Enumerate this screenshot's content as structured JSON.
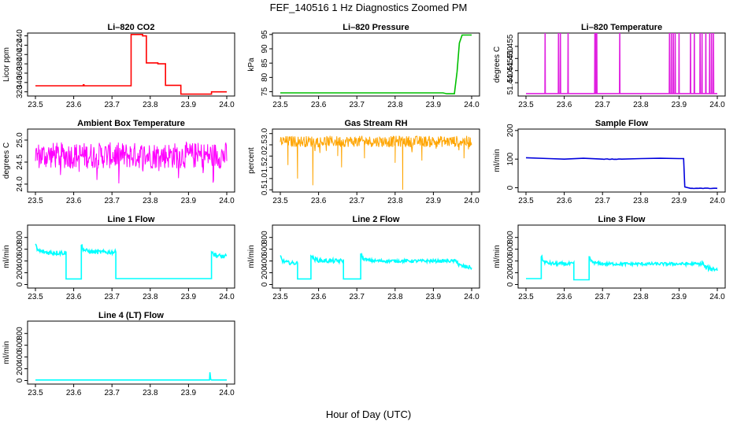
{
  "title": "FEF_140516  1 Hz Diagnostics Zoomed PM",
  "xlabel": "Hour of Day (UTC)",
  "chart_data": [
    {
      "type": "line",
      "title": "Li–820 CO2",
      "ylabel": "Licor ppm",
      "color": "#ff0000",
      "xlim": [
        23.5,
        24.0
      ],
      "xticks": [
        "23.5",
        "23.6",
        "23.7",
        "23.8",
        "23.9",
        "24.0"
      ],
      "ylim": [
        311,
        446
      ],
      "yticks": [
        320,
        340,
        360,
        380,
        400,
        420,
        440
      ],
      "x": [
        23.5,
        23.625,
        23.625,
        23.627,
        23.627,
        23.75,
        23.75,
        23.78,
        23.78,
        23.79,
        23.79,
        23.82,
        23.82,
        23.84,
        23.84,
        23.88,
        23.88,
        23.96,
        23.96,
        24.0
      ],
      "y": [
        333,
        333,
        335,
        335,
        333,
        333,
        443,
        443,
        440,
        440,
        382,
        382,
        380,
        380,
        334,
        334,
        315,
        315,
        320,
        320
      ]
    },
    {
      "type": "line",
      "title": "Li–820 Pressure",
      "ylabel": "kPa",
      "color": "#00c000",
      "xlim": [
        23.5,
        24.0
      ],
      "xticks": [
        "23.5",
        "23.6",
        "23.7",
        "23.8",
        "23.9",
        "24.0"
      ],
      "ylim": [
        73.5,
        95.5
      ],
      "yticks": [
        75,
        80,
        85,
        90,
        95
      ],
      "x": [
        23.5,
        23.925,
        23.935,
        23.955,
        23.962,
        23.968,
        23.975,
        24.0
      ],
      "y": [
        74.6,
        74.6,
        74.3,
        74.3,
        82,
        92,
        94.8,
        94.8
      ]
    },
    {
      "type": "line",
      "title": "Li–820 Temperature",
      "ylabel": "degrees C",
      "color": "#e020e0",
      "xlim": [
        23.5,
        24.0
      ],
      "xticks": [
        "23.5",
        "23.6",
        "23.7",
        "23.8",
        "23.9",
        "24.0"
      ],
      "ylim": [
        51.4345,
        51.4605
      ],
      "yticks": [
        "51.440",
        "51.445",
        "51.450",
        "51.455"
      ],
      "baseline": 51.4355,
      "spike": 51.4605,
      "spikes": [
        23.55,
        23.585,
        23.59,
        23.61,
        23.68,
        23.683,
        23.685,
        23.745,
        23.875,
        23.88,
        23.885,
        23.89,
        23.9,
        23.93,
        23.94,
        23.955,
        23.96,
        23.97,
        23.98,
        23.985,
        23.99
      ]
    },
    {
      "type": "line",
      "title": "Ambient Box Temperature",
      "ylabel": "degrees C",
      "color": "#ff00ff",
      "xlim": [
        23.5,
        24.0
      ],
      "xticks": [
        "23.5",
        "23.6",
        "23.7",
        "23.8",
        "23.9",
        "24.0"
      ],
      "ylim": [
        23.82,
        25.25
      ],
      "yticks": [
        "24.0",
        "24.5",
        "25.0"
      ],
      "center": 24.65,
      "amp": 0.3
    },
    {
      "type": "line",
      "title": "Gas Stream RH",
      "ylabel": "percent",
      "color": "#ffa500",
      "xlim": [
        23.5,
        24.0
      ],
      "xticks": [
        "23.5",
        "23.6",
        "23.7",
        "23.8",
        "23.9",
        "24.0"
      ],
      "ylim": [
        0.4,
        3.2
      ],
      "yticks": [
        "0.5",
        "1.0",
        "1.5",
        "2.0",
        "2.5",
        "3.0"
      ],
      "center": 2.65,
      "amp": 0.25,
      "dips": [
        [
          23.52,
          1.6
        ],
        [
          23.545,
          1.0
        ],
        [
          23.585,
          0.7
        ],
        [
          23.65,
          2.0
        ],
        [
          23.66,
          1.5
        ],
        [
          23.72,
          1.9
        ],
        [
          23.8,
          1.7
        ],
        [
          23.82,
          0.5
        ],
        [
          23.87,
          1.8
        ],
        [
          23.98,
          1.9
        ]
      ]
    },
    {
      "type": "line",
      "title": "Sample Flow",
      "ylabel": "ml/min",
      "color": "#0000dd",
      "xlim": [
        23.5,
        24.0
      ],
      "xticks": [
        "23.5",
        "23.6",
        "23.7",
        "23.8",
        "23.9",
        "24.0"
      ],
      "ylim": [
        -15,
        205
      ],
      "yticks": [
        0,
        100,
        200
      ],
      "x": [
        23.5,
        23.56,
        23.6,
        23.65,
        23.7,
        23.75,
        23.8,
        23.85,
        23.9,
        23.912,
        23.915,
        23.93,
        24.0
      ],
      "y": [
        105,
        102,
        100,
        103,
        100,
        100,
        102,
        103,
        102,
        102,
        3,
        -2,
        -2
      ]
    },
    {
      "type": "line",
      "title": "Line 1 Flow",
      "ylabel": "ml/min",
      "color": "#00ffff",
      "xlim": [
        23.5,
        24.0
      ],
      "xticks": [
        "23.5",
        "23.6",
        "23.7",
        "23.8",
        "23.9",
        "24.0"
      ],
      "ylim": [
        -60,
        1010
      ],
      "yticks": [
        0,
        200,
        400,
        600,
        800
      ],
      "segments": [
        [
          23.5,
          23.58,
          540,
          40
        ],
        [
          23.58,
          23.62,
          95,
          0
        ],
        [
          23.62,
          23.71,
          550,
          35
        ],
        [
          23.71,
          23.96,
          100,
          0
        ],
        [
          23.96,
          24.0,
          470,
          40
        ]
      ]
    },
    {
      "type": "line",
      "title": "Line 2 Flow",
      "ylabel": "ml/min",
      "color": "#00ffff",
      "xlim": [
        23.5,
        24.0
      ],
      "xticks": [
        "23.5",
        "23.6",
        "23.7",
        "23.8",
        "23.9",
        "24.0"
      ],
      "ylim": [
        -60,
        1010
      ],
      "yticks": [
        0,
        200,
        400,
        600,
        800
      ],
      "segments": [
        [
          23.5,
          23.545,
          360,
          30
        ],
        [
          23.545,
          23.58,
          95,
          0
        ],
        [
          23.58,
          23.665,
          400,
          35
        ],
        [
          23.665,
          23.71,
          95,
          0
        ],
        [
          23.71,
          23.96,
          400,
          25
        ],
        [
          23.96,
          24.0,
          290,
          35
        ]
      ]
    },
    {
      "type": "line",
      "title": "Line 3 Flow",
      "ylabel": "ml/min",
      "color": "#00ffff",
      "xlim": [
        23.5,
        24.0
      ],
      "xticks": [
        "23.5",
        "23.6",
        "23.7",
        "23.8",
        "23.9",
        "24.0"
      ],
      "ylim": [
        -60,
        1010
      ],
      "yticks": [
        0,
        200,
        400,
        600,
        800
      ],
      "segments": [
        [
          23.5,
          23.54,
          100,
          0
        ],
        [
          23.54,
          23.625,
          350,
          30
        ],
        [
          23.625,
          23.665,
          80,
          0
        ],
        [
          23.665,
          23.96,
          350,
          25
        ],
        [
          23.96,
          24.0,
          260,
          40
        ]
      ]
    },
    {
      "type": "line",
      "title": "Line 4 (LT) Flow",
      "ylabel": "ml/min",
      "color": "#00ffff",
      "xlim": [
        23.5,
        24.0
      ],
      "xticks": [
        "23.5",
        "23.6",
        "23.7",
        "23.8",
        "23.9",
        "24.0"
      ],
      "ylim": [
        -60,
        1010
      ],
      "yticks": [
        0,
        200,
        400,
        600,
        800
      ],
      "x": [
        23.5,
        23.955,
        23.956,
        23.958,
        23.96,
        24.0
      ],
      "y": [
        10,
        10,
        140,
        20,
        10,
        10
      ]
    }
  ]
}
